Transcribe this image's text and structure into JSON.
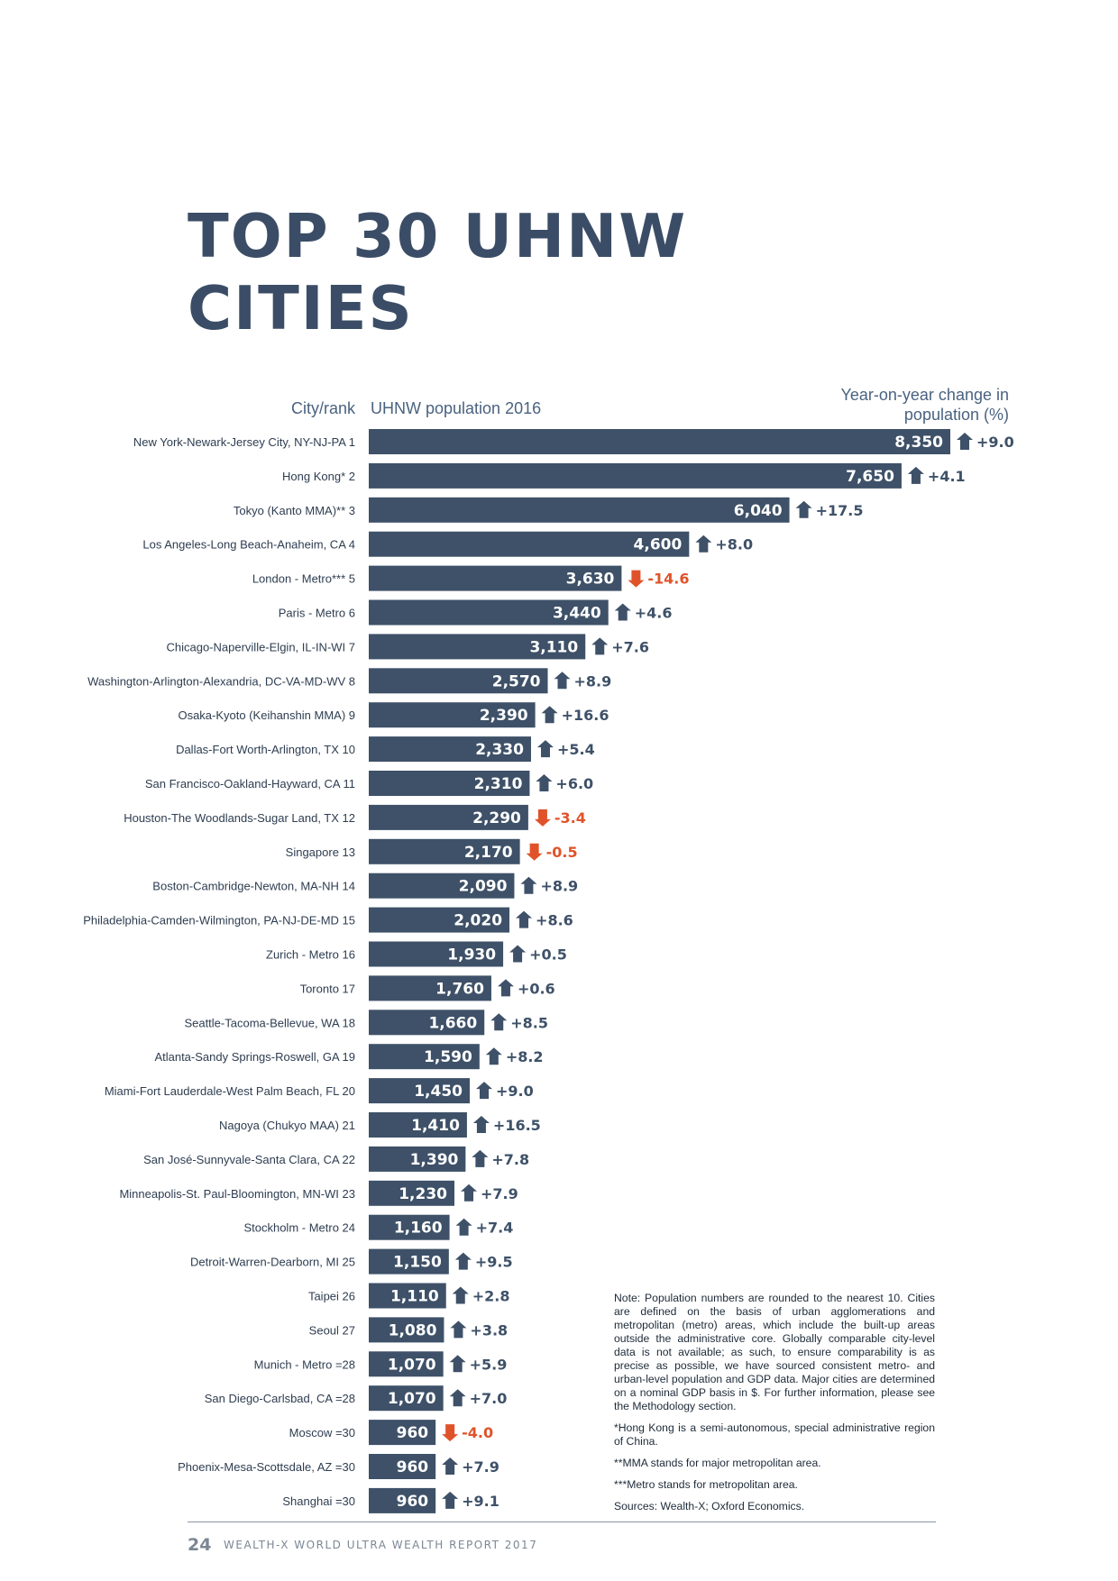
{
  "title": {
    "line1": "TOP 30 UHNW",
    "line2": "CITIES"
  },
  "headers": {
    "city": "City/rank",
    "population": "UHNW population 2016",
    "change_line1": "Year-on-year change in",
    "change_line2": "population (%)"
  },
  "colors": {
    "bar": "#3e5168",
    "up": "#3e5168",
    "down": "#e0532a",
    "text": "#3d5068"
  },
  "chart_data": {
    "type": "bar",
    "orientation": "horizontal",
    "title": "TOP 30 UHNW CITIES",
    "xlabel": "UHNW population 2016",
    "ylabel": "City/rank",
    "xlim": [
      0,
      8350
    ],
    "categories": [
      "New York-Newark-Jersey City, NY-NJ-PA 1",
      "Hong Kong* 2",
      "Tokyo (Kanto MMA)** 3",
      "Los Angeles-Long Beach-Anaheim, CA 4",
      "London - Metro*** 5",
      "Paris - Metro 6",
      "Chicago-Naperville-Elgin, IL-IN-WI 7",
      "Washington-Arlington-Alexandria, DC-VA-MD-WV 8",
      "Osaka-Kyoto (Keihanshin MMA) 9",
      "Dallas-Fort Worth-Arlington, TX 10",
      "San Francisco-Oakland-Hayward, CA 11",
      "Houston-The Woodlands-Sugar Land, TX 12",
      "Singapore 13",
      "Boston-Cambridge-Newton, MA-NH 14",
      "Philadelphia-Camden-Wilmington, PA-NJ-DE-MD 15",
      "Zurich - Metro 16",
      "Toronto 17",
      "Seattle-Tacoma-Bellevue, WA 18",
      "Atlanta-Sandy Springs-Roswell, GA 19",
      "Miami-Fort Lauderdale-West Palm Beach, FL 20",
      "Nagoya (Chukyo MAA) 21",
      "San José-Sunnyvale-Santa Clara, CA 22",
      "Minneapolis-St. Paul-Bloomington, MN-WI 23",
      "Stockholm - Metro 24",
      "Detroit-Warren-Dearborn, MI 25",
      "Taipei 26",
      "Seoul 27",
      "Munich - Metro =28",
      "San Diego-Carlsbad, CA =28",
      "Moscow =30",
      "Phoenix-Mesa-Scottsdale, AZ =30",
      "Shanghai =30"
    ],
    "series": [
      {
        "name": "UHNW population 2016",
        "values": [
          8350,
          7650,
          6040,
          4600,
          3630,
          3440,
          3110,
          2570,
          2390,
          2330,
          2310,
          2290,
          2170,
          2090,
          2020,
          1930,
          1760,
          1660,
          1590,
          1450,
          1410,
          1390,
          1230,
          1160,
          1150,
          1110,
          1080,
          1070,
          1070,
          960,
          960,
          960
        ],
        "labels": [
          "8,350",
          "7,650",
          "6,040",
          "4,600",
          "3,630",
          "3,440",
          "3,110",
          "2,570",
          "2,390",
          "2,330",
          "2,310",
          "2,290",
          "2,170",
          "2,090",
          "2,020",
          "1,930",
          "1,760",
          "1,660",
          "1,590",
          "1,450",
          "1,410",
          "1,390",
          "1,230",
          "1,160",
          "1,150",
          "1,110",
          "1,080",
          "1,070",
          "1,070",
          "960",
          "960",
          "960"
        ]
      },
      {
        "name": "Year-on-year change in population (%)",
        "values": [
          9.0,
          4.1,
          17.5,
          8.0,
          -14.6,
          4.6,
          7.6,
          8.9,
          16.6,
          5.4,
          6.0,
          -3.4,
          -0.5,
          8.9,
          8.6,
          0.5,
          0.6,
          8.5,
          8.2,
          9.0,
          16.5,
          7.8,
          7.9,
          7.4,
          9.5,
          2.8,
          3.8,
          5.9,
          7.0,
          -4.0,
          7.9,
          9.1
        ],
        "labels": [
          "+9.0",
          "+4.1",
          "+17.5",
          "+8.0",
          "-14.6",
          "+4.6",
          "+7.6",
          "+8.9",
          "+16.6",
          "+5.4",
          "+6.0",
          "-3.4",
          "-0.5",
          "+8.9",
          "+8.6",
          "+0.5",
          "+0.6",
          "+8.5",
          "+8.2",
          "+9.0",
          "+16.5",
          "+7.8",
          "+7.9",
          "+7.4",
          "+9.5",
          "+2.8",
          "+3.8",
          "+5.9",
          "+7.0",
          "-4.0",
          "+7.9",
          "+9.1"
        ]
      }
    ]
  },
  "notes": [
    "Note: Population numbers are rounded to the nearest 10. Cities are defined on the basis of urban agglomerations and metropolitan (metro) areas, which include the built-up areas outside the administrative core. Globally comparable city-level data is not available; as such, to ensure comparability is as precise as possible, we have sourced consistent metro- and urban-level population and GDP data. Major cities are determined on a nominal GDP basis in $. For further information, please see the Methodology section.",
    "*Hong Kong is a semi-autonomous, special administrative region of China.",
    "**MMA stands for major metropolitan area.",
    "***Metro stands for metropolitan area.",
    "Sources: Wealth-X; Oxford Economics."
  ],
  "footer": {
    "page_number": "24",
    "report_name": "WEALTH-X WORLD ULTRA WEALTH REPORT 2017"
  }
}
